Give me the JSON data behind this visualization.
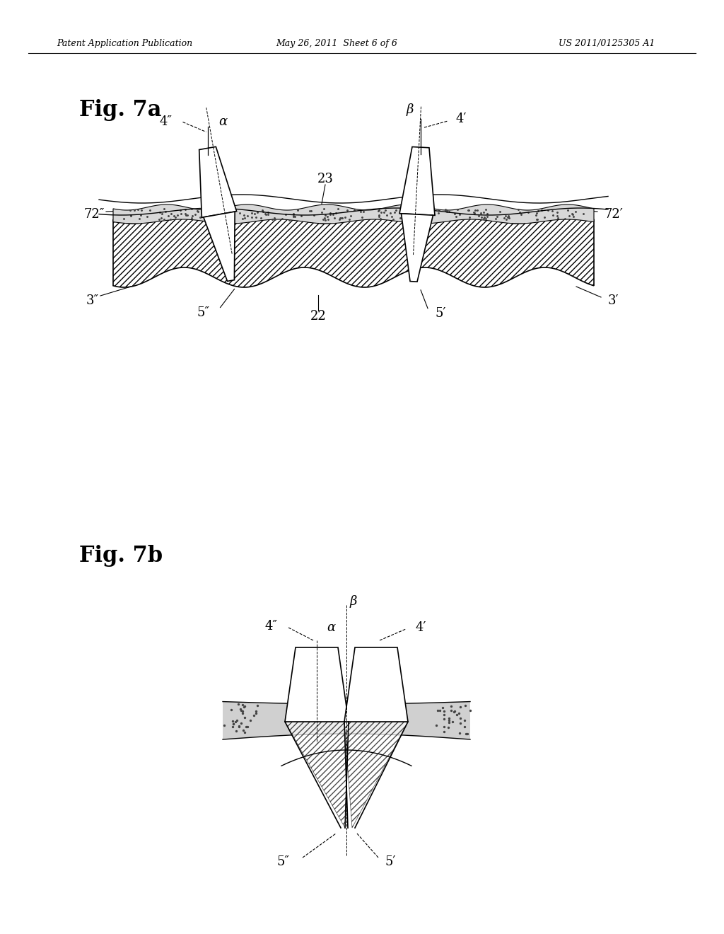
{
  "bg_color": "#ffffff",
  "line_color": "#000000",
  "header_left": "Patent Application Publication",
  "header_center": "May 26, 2011  Sheet 6 of 6",
  "header_right": "US 2011/0125305 A1",
  "fig7a_label": "Fig. 7a",
  "fig7b_label": "Fig. 7b",
  "labels": {
    "alpha": "α",
    "beta": "β",
    "4pp": "4″",
    "4p": "4′",
    "3pp": "3″",
    "3p": "3′",
    "5pp": "5″",
    "5p": "5′",
    "72pp": "72″",
    "72p": "72′",
    "22": "22",
    "23": "23"
  }
}
